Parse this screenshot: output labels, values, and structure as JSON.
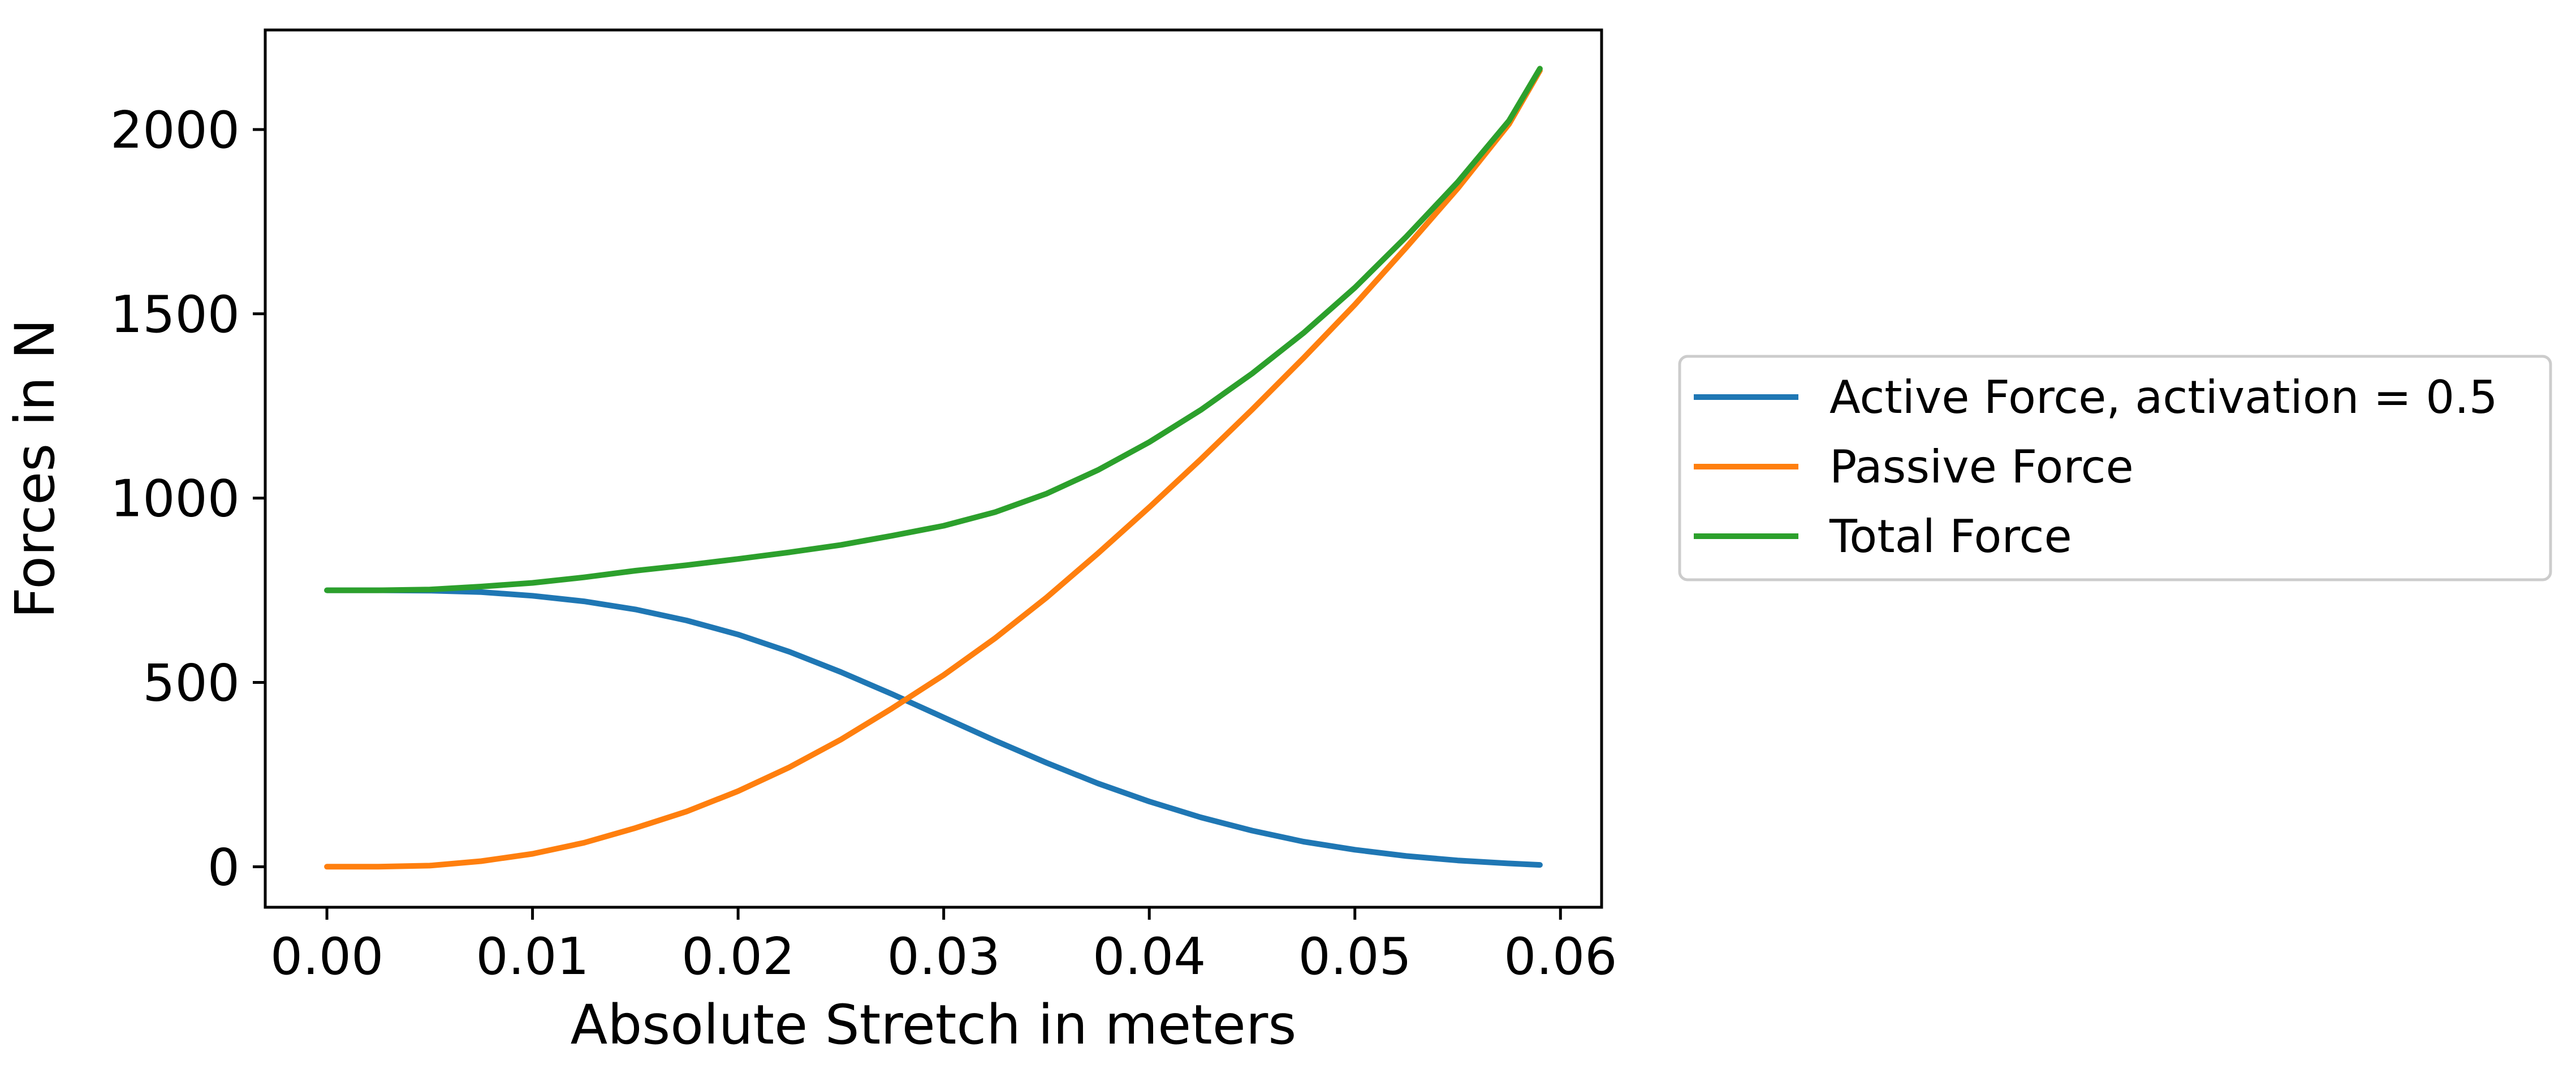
{
  "chart_data": {
    "type": "line",
    "title": "",
    "xlabel": "Absolute Stretch in meters",
    "ylabel": "Forces in N",
    "xlim": [
      -0.003,
      0.062
    ],
    "ylim": [
      -110,
      2270
    ],
    "xticks": [
      0.0,
      0.01,
      0.02,
      0.03,
      0.04,
      0.05,
      0.06
    ],
    "xtick_labels": [
      "0.00",
      "0.01",
      "0.02",
      "0.03",
      "0.04",
      "0.05",
      "0.06"
    ],
    "yticks": [
      0,
      500,
      1000,
      1500,
      2000
    ],
    "ytick_labels": [
      "0",
      "500",
      "1000",
      "1500",
      "2000"
    ],
    "grid": false,
    "legend_position": "outside-right",
    "x": [
      0.0,
      0.0025,
      0.005,
      0.0075,
      0.01,
      0.0125,
      0.015,
      0.0175,
      0.02,
      0.0225,
      0.025,
      0.0275,
      0.03,
      0.0325,
      0.035,
      0.0375,
      0.04,
      0.0425,
      0.045,
      0.0475,
      0.05,
      0.0525,
      0.055,
      0.0575,
      0.059
    ],
    "series": [
      {
        "name": "Active Force, activation = 0.5",
        "color": "#1f77b4",
        "values": [
          750,
          750,
          749,
          745,
          735,
          720,
          698,
          668,
          630,
          583,
          528,
          468,
          405,
          342,
          282,
          226,
          177,
          134,
          98,
          68,
          46,
          29,
          17,
          9,
          5
        ]
      },
      {
        "name": "Passive Force",
        "color": "#ff7f0e",
        "values": [
          0,
          0,
          3,
          15,
          35,
          65,
          105,
          150,
          205,
          270,
          345,
          430,
          520,
          620,
          730,
          850,
          975,
          1105,
          1240,
          1380,
          1525,
          1680,
          1840,
          2015,
          2160
        ]
      },
      {
        "name": "Total Force",
        "color": "#2ca02c",
        "values": [
          750,
          750,
          752,
          760,
          770,
          785,
          803,
          818,
          835,
          853,
          873,
          898,
          925,
          962,
          1012,
          1076,
          1152,
          1239,
          1338,
          1448,
          1571,
          1709,
          1857,
          2024,
          2165
        ]
      }
    ]
  }
}
